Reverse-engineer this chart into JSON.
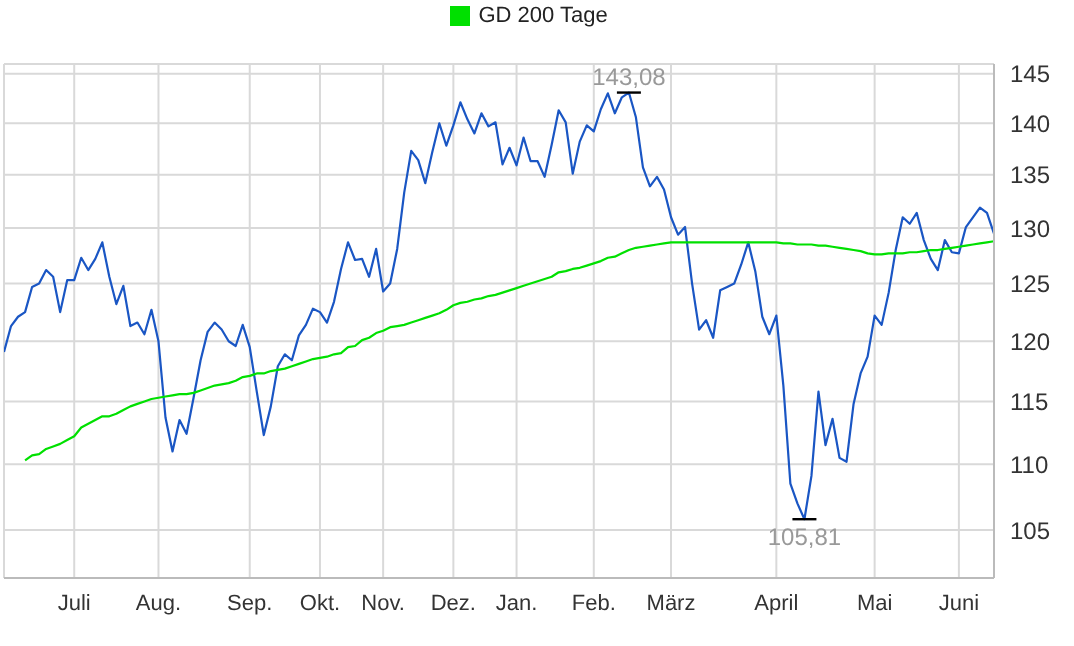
{
  "chart_data": {
    "type": "line",
    "log": true,
    "grid": true,
    "legend": "top",
    "categories": [
      null,
      null,
      null,
      null,
      null,
      null,
      null,
      null,
      null,
      null,
      "Juli",
      null,
      null,
      null,
      null,
      null,
      null,
      null,
      null,
      null,
      null,
      null,
      "Aug.",
      null,
      null,
      null,
      null,
      null,
      null,
      null,
      null,
      null,
      null,
      null,
      null,
      "Sep.",
      null,
      null,
      null,
      null,
      null,
      null,
      null,
      null,
      null,
      "Okt.",
      null,
      null,
      null,
      null,
      null,
      null,
      null,
      null,
      "Nov.",
      null,
      null,
      null,
      null,
      null,
      null,
      null,
      null,
      null,
      "Dez.",
      null,
      null,
      null,
      null,
      null,
      null,
      null,
      null,
      "Jan.",
      null,
      null,
      null,
      null,
      null,
      null,
      null,
      null,
      null,
      null,
      "Feb.",
      null,
      null,
      null,
      null,
      null,
      null,
      null,
      null,
      null,
      null,
      "März",
      null,
      null,
      null,
      null,
      null,
      null,
      null,
      null,
      null,
      null,
      null,
      null,
      null,
      null,
      "April",
      null,
      null,
      null,
      null,
      null,
      null,
      null,
      null,
      null,
      null,
      null,
      null,
      null,
      "Mai",
      null,
      null,
      null,
      null,
      null,
      null,
      null,
      null,
      null,
      null,
      null,
      "Juni",
      null,
      null,
      null,
      null,
      null
    ],
    "ylim": [
      101.5,
      146
    ],
    "yticks": [
      105,
      110,
      115,
      120,
      125,
      130,
      135,
      140,
      145
    ],
    "series": [
      {
        "color": "#1a56c4",
        "values": [
          119.1,
          121.3,
          122.1,
          122.5,
          124.7,
          125,
          126.2,
          125.6,
          122.5,
          125.3,
          125.3,
          127.3,
          126.2,
          127.2,
          128.7,
          125.6,
          123.2,
          124.8,
          121.3,
          121.6,
          120.6,
          122.7,
          120,
          113.7,
          111,
          113.5,
          112.4,
          115.3,
          118.4,
          120.8,
          121.6,
          121,
          120,
          119.6,
          121.4,
          119.5,
          115.8,
          112.3,
          114.6,
          117.9,
          118.9,
          118.4,
          120.5,
          121.4,
          122.8,
          122.5,
          121.6,
          123.4,
          126.3,
          128.7,
          127.1,
          127.2,
          125.6,
          128.1,
          124.3,
          125,
          128.1,
          133.3,
          137.3,
          136.4,
          134.2,
          137.2,
          140,
          137.8,
          139.8,
          142.1,
          140.4,
          139,
          141,
          139.7,
          140.1,
          136,
          137.6,
          135.9,
          138.6,
          136.3,
          136.3,
          134.8,
          137.9,
          141.3,
          140.1,
          135.1,
          138.2,
          139.8,
          139.2,
          141.4,
          143,
          141,
          142.6,
          143.08,
          140.6,
          135.7,
          133.9,
          134.8,
          133.6,
          131,
          129.4,
          130.1,
          125,
          121,
          121.8,
          120.3,
          124.4,
          124.7,
          125,
          126.7,
          128.7,
          126.1,
          122.1,
          120.6,
          122.2,
          116.3,
          108.5,
          107,
          105.81,
          109.1,
          115.8,
          111.5,
          113.6,
          110.5,
          110.2,
          114.8,
          117.3,
          118.7,
          122.2,
          121.4,
          124.2,
          128,
          131,
          130.4,
          131.4,
          128.9,
          127.2,
          126.2,
          128.9,
          127.8,
          127.7,
          130.1,
          131,
          131.9,
          131.4,
          129.5
        ]
      },
      {
        "name": "GD 200 Tage",
        "color": "#00e000",
        "values": [
          null,
          null,
          null,
          110.3,
          110.7,
          110.8,
          111.2,
          111.4,
          111.6,
          111.9,
          112.2,
          112.9,
          113.2,
          113.5,
          113.8,
          113.8,
          114.0,
          114.3,
          114.6,
          114.8,
          115.0,
          115.2,
          115.3,
          115.4,
          115.5,
          115.6,
          115.6,
          115.7,
          115.9,
          116.1,
          116.3,
          116.4,
          116.5,
          116.7,
          117.0,
          117.1,
          117.3,
          117.3,
          117.5,
          117.6,
          117.7,
          117.9,
          118.1,
          118.3,
          118.5,
          118.6,
          118.7,
          118.9,
          119.0,
          119.5,
          119.6,
          120.1,
          120.3,
          120.7,
          120.9,
          121.2,
          121.3,
          121.4,
          121.6,
          121.8,
          122.0,
          122.2,
          122.4,
          122.7,
          123.1,
          123.3,
          123.4,
          123.6,
          123.7,
          123.9,
          124.0,
          124.2,
          124.4,
          124.6,
          124.8,
          125.0,
          125.2,
          125.4,
          125.6,
          126.0,
          126.1,
          126.3,
          126.4,
          126.6,
          126.8,
          127.0,
          127.3,
          127.4,
          127.7,
          128.0,
          128.2,
          128.3,
          128.4,
          128.5,
          128.6,
          128.7,
          128.7,
          128.7,
          128.7,
          128.7,
          128.7,
          128.7,
          128.7,
          128.7,
          128.7,
          128.7,
          128.7,
          128.7,
          128.7,
          128.7,
          128.7,
          128.6,
          128.6,
          128.5,
          128.5,
          128.5,
          128.4,
          128.4,
          128.3,
          128.2,
          128.1,
          128.0,
          127.9,
          127.7,
          127.6,
          127.6,
          127.7,
          127.7,
          127.7,
          127.8,
          127.8,
          127.9,
          128.0,
          128.0,
          128.1,
          128.2,
          128.3,
          128.4,
          128.5,
          128.6,
          128.7,
          128.8
        ]
      }
    ],
    "annotations": [
      {
        "text": "143,08",
        "y": 143.08
      },
      {
        "text": "105,81",
        "y": 105.81
      }
    ]
  }
}
